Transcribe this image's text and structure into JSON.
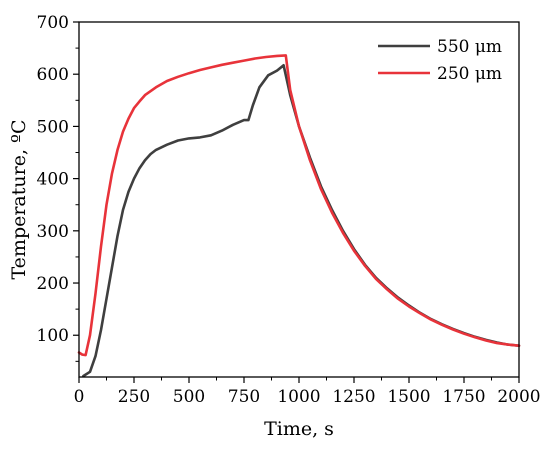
{
  "chart_data": {
    "type": "line",
    "title": "",
    "xlabel": "Time, s",
    "ylabel": "Temperature, ºC",
    "xlim": [
      0,
      2000
    ],
    "ylim": [
      20,
      700
    ],
    "x_ticks": [
      0,
      250,
      500,
      750,
      1000,
      1250,
      1500,
      1750,
      2000
    ],
    "x_tick_labels": [
      "0",
      "250",
      "500",
      "750",
      "1000",
      "1250",
      "1500",
      "1750",
      "2000"
    ],
    "y_ticks": [
      100,
      200,
      300,
      400,
      500,
      600,
      700
    ],
    "y_tick_labels": [
      "100",
      "200",
      "300",
      "400",
      "500",
      "600",
      "700"
    ],
    "grid": false,
    "legend_position": "top-right",
    "series": [
      {
        "name": "550 μm",
        "color": "#3f3f3f",
        "points": [
          [
            20,
            22
          ],
          [
            50,
            30
          ],
          [
            75,
            60
          ],
          [
            100,
            110
          ],
          [
            125,
            170
          ],
          [
            150,
            230
          ],
          [
            175,
            290
          ],
          [
            200,
            340
          ],
          [
            225,
            375
          ],
          [
            250,
            400
          ],
          [
            275,
            420
          ],
          [
            300,
            435
          ],
          [
            325,
            447
          ],
          [
            350,
            455
          ],
          [
            400,
            465
          ],
          [
            450,
            473
          ],
          [
            500,
            477
          ],
          [
            550,
            479
          ],
          [
            600,
            483
          ],
          [
            650,
            492
          ],
          [
            700,
            503
          ],
          [
            750,
            512
          ],
          [
            770,
            512
          ],
          [
            790,
            540
          ],
          [
            820,
            575
          ],
          [
            860,
            598
          ],
          [
            900,
            607
          ],
          [
            930,
            617
          ],
          [
            960,
            560
          ],
          [
            1000,
            500
          ],
          [
            1050,
            440
          ],
          [
            1100,
            385
          ],
          [
            1150,
            340
          ],
          [
            1200,
            300
          ],
          [
            1250,
            265
          ],
          [
            1300,
            235
          ],
          [
            1350,
            210
          ],
          [
            1400,
            190
          ],
          [
            1450,
            172
          ],
          [
            1500,
            157
          ],
          [
            1550,
            143
          ],
          [
            1600,
            131
          ],
          [
            1650,
            121
          ],
          [
            1700,
            112
          ],
          [
            1750,
            104
          ],
          [
            1800,
            97
          ],
          [
            1850,
            91
          ],
          [
            1900,
            86
          ],
          [
            1950,
            82
          ],
          [
            2000,
            80
          ]
        ]
      },
      {
        "name": "250 μm",
        "color": "#e8333a",
        "points": [
          [
            0,
            67
          ],
          [
            15,
            63
          ],
          [
            30,
            62
          ],
          [
            50,
            100
          ],
          [
            75,
            180
          ],
          [
            100,
            270
          ],
          [
            125,
            350
          ],
          [
            150,
            410
          ],
          [
            175,
            455
          ],
          [
            200,
            490
          ],
          [
            225,
            515
          ],
          [
            250,
            535
          ],
          [
            275,
            548
          ],
          [
            300,
            560
          ],
          [
            350,
            575
          ],
          [
            400,
            587
          ],
          [
            450,
            595
          ],
          [
            500,
            602
          ],
          [
            550,
            608
          ],
          [
            600,
            613
          ],
          [
            650,
            618
          ],
          [
            700,
            622
          ],
          [
            750,
            626
          ],
          [
            800,
            630
          ],
          [
            850,
            633
          ],
          [
            900,
            635
          ],
          [
            940,
            636
          ],
          [
            960,
            570
          ],
          [
            1000,
            500
          ],
          [
            1050,
            435
          ],
          [
            1100,
            380
          ],
          [
            1150,
            335
          ],
          [
            1200,
            296
          ],
          [
            1250,
            262
          ],
          [
            1300,
            233
          ],
          [
            1350,
            208
          ],
          [
            1400,
            188
          ],
          [
            1450,
            170
          ],
          [
            1500,
            155
          ],
          [
            1550,
            142
          ],
          [
            1600,
            130
          ],
          [
            1650,
            120
          ],
          [
            1700,
            111
          ],
          [
            1750,
            103
          ],
          [
            1800,
            96
          ],
          [
            1850,
            90
          ],
          [
            1900,
            85
          ],
          [
            1950,
            82
          ],
          [
            2000,
            80
          ]
        ]
      }
    ]
  }
}
